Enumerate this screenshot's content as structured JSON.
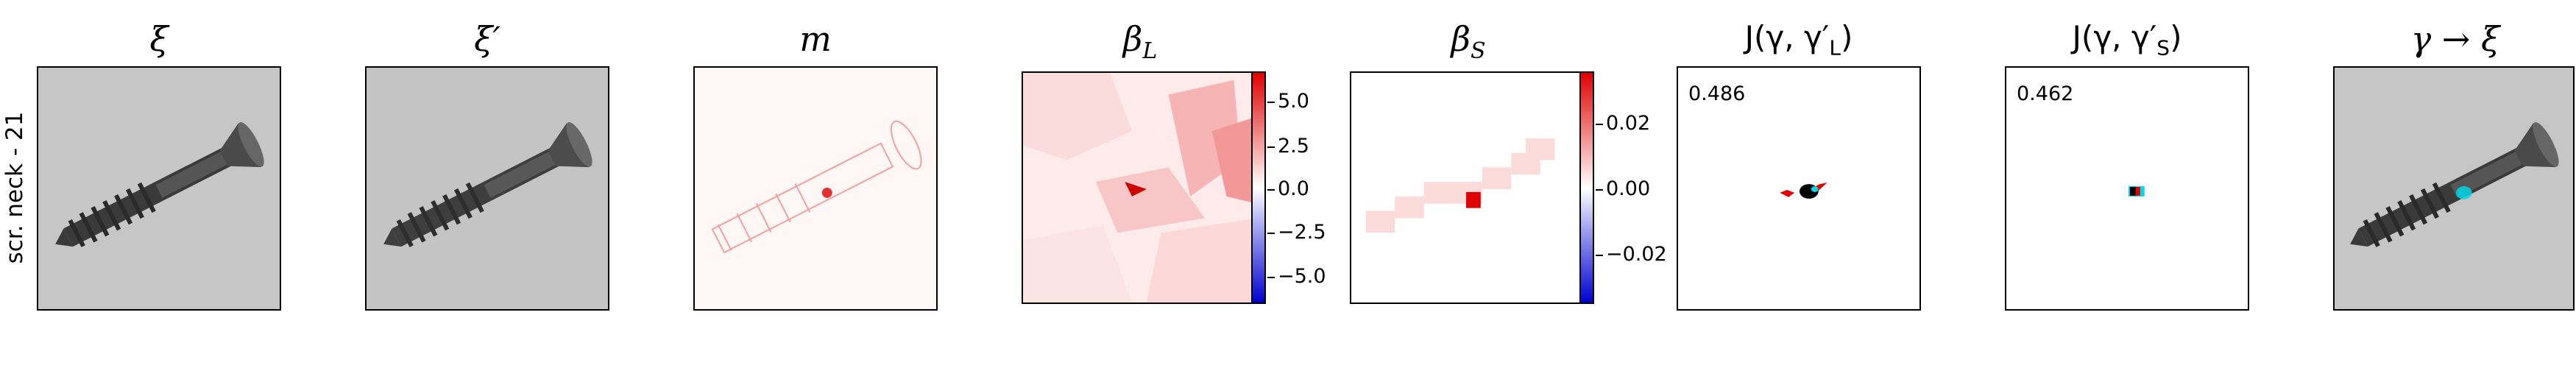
{
  "row_label": "scr. neck - 21",
  "panels": [
    {
      "title": "ξ",
      "kind": "image"
    },
    {
      "title": "ξ′",
      "kind": "image"
    },
    {
      "title": "m",
      "kind": "heatmap"
    },
    {
      "title": "β",
      "title_sub": "L",
      "kind": "heatmap_cbar",
      "colorbar_ticks": [
        "5.0",
        "2.5",
        "0.0",
        "−2.5",
        "−5.0"
      ]
    },
    {
      "title": "β",
      "title_sub": "S",
      "kind": "heatmap_cbar",
      "colorbar_ticks": [
        "0.02",
        "0.00",
        "−0.02"
      ]
    },
    {
      "title": "J(γ, γ′",
      "title_sub": "L",
      "title_end": ")",
      "kind": "overlay",
      "score": "0.486"
    },
    {
      "title": "J(γ, γ′",
      "title_sub": "S",
      "title_end": ")",
      "kind": "overlay",
      "score": "0.462"
    },
    {
      "title": "γ → ξ",
      "kind": "image"
    }
  ],
  "colors": {
    "positive": "#e00000",
    "negative": "#0000d0",
    "cyan": "#00d8e8",
    "black": "#000000",
    "photo_bg": "#c4c4c4"
  }
}
